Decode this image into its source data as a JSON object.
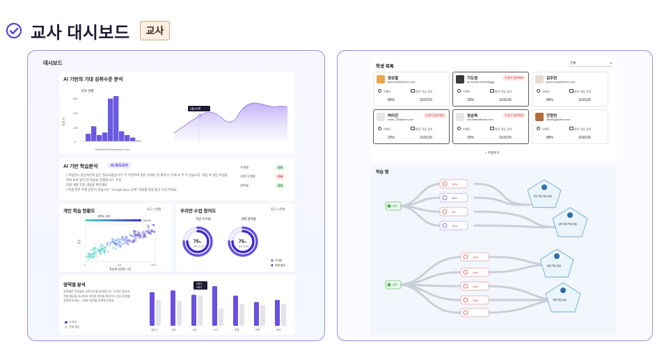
{
  "header": {
    "title": "교사 대시보드",
    "badge": "교사",
    "icon": "check-circle-icon",
    "accent": "#5b3fd6"
  },
  "left": {
    "panel_title": "대시보드",
    "achievement": {
      "title": "AI 기반의 기대 성취수준 분석",
      "hist_title": "분포 현황",
      "hist_xlabel": "Expected Performance Level",
      "hist_ylabel": "학생 수",
      "hist_yticks": [
        "300",
        "200",
        "100",
        "0"
      ],
      "hist_values": [
        0,
        60,
        120,
        50,
        70,
        340,
        360,
        80,
        50,
        30,
        5
      ],
      "tooltip": "2월 00명"
    },
    "learning": {
      "title": "AI 기반 학습분석",
      "badge": "AI 보조교사",
      "line1": "• 프랑현시 정상적인데 음은 정규사람입니다. 주 주변하여 질문 이해다 잘 평대 다 주제 보 주 수 있습니다. 개념 외 일반 학생들에게 보조 앞이 더 학습을 진행합니다. 수업",
      "line2": "  학생 개별 코칭 내용을 확인해요.",
      "line3": "• 학생 연관 주제 감전이 있습니다. \"Google Docs 문제\" 자료를 학습 참고 다녀 주세요.",
      "rows": [
        {
          "label": "숙제율",
          "badge": "양호"
        },
        {
          "label": "과제 수행률",
          "badge": "주의"
        },
        {
          "label": "참여율",
          "badge": "양호"
        }
      ]
    },
    "scatter": {
      "title": "개인 학습 현황도",
      "filter": "최근 1개월",
      "colorbar_label": "성취도 분포",
      "colorbar_max": "100.00",
      "xlabel": "학습에 사용한 시간",
      "ylabel": "점수",
      "xticks": [
        "0",
        "5%",
        "10%"
      ]
    },
    "class": {
      "title": "우리반 수업 참여도",
      "filter": "최근 1개월",
      "donut1_title": "학업 이수율",
      "donut1_value": "75",
      "donut1_unit": "%",
      "donut1_sub": "평균 이수율",
      "donut1_pct": 75,
      "donut2_title": "과제 참여율",
      "donut2_value": "75",
      "donut2_unit": "%",
      "donut2_sub": "평균 참여율",
      "donut2_pct": 75,
      "legend1": "우리반",
      "legend2": "전체 평균"
    },
    "area": {
      "title": "영역별 분석",
      "desc1": "영역별로 학생들의 성취수준을 분석합니다. 우리반 평균과",
      "desc2": "전체 평균을 비교하여 부족한 영역을 확인하고 지도 방향을",
      "desc3": "설정해 보세요. 그래프 항목을 선택해 보세요.",
      "legend1": "우리반",
      "legend2": "전체 평균",
      "tooltip1": "1학기",
      "tooltip2": "2학기",
      "categories": [
        "말하기",
        "듣기",
        "읽기",
        "쓰기",
        "문법",
        "문학",
        "매체"
      ],
      "series": [
        {
          "name": "우리반",
          "values": [
            78,
            82,
            72,
            92,
            70,
            55,
            60
          ]
        },
        {
          "name": "전체 평균",
          "values": [
            60,
            58,
            70,
            40,
            50,
            48,
            50
          ]
        }
      ],
      "colors": {
        "ours": "#6a4fe0",
        "avg": "#e3e3ea"
      }
    }
  },
  "right": {
    "list_title": "학생 목록",
    "select": "전체",
    "add": "+ 학생추가",
    "col1": "이해도",
    "col2": "완료 학습 강의",
    "students": [
      {
        "name": "정성철",
        "email": "gdsxcdfstr@steer.com",
        "tag": "",
        "v1": "80%",
        "v2": "110/120",
        "color": "#e8a64a"
      },
      {
        "name": "기도영",
        "email": "qf.ssentur23090@ggg",
        "tag": "도움이 필요해요",
        "v1": "10%",
        "v2": "110/120",
        "color": "#3a3a3a"
      },
      {
        "name": "김주연",
        "email": "gsvlcr.boyd@steer.com",
        "tag": "",
        "v1": "80%",
        "v2": "110/120",
        "color": "#e7dcd0"
      },
      {
        "name": "허미진",
        "email": "smile_90@steer.com",
        "tag": "도움이 필요해요",
        "v1": "20%",
        "v2": "110/120",
        "color": "#e6e6e6"
      },
      {
        "name": "정승욱",
        "email": "mountain@steer.com",
        "tag": "도움이 필요해요",
        "v1": "20%",
        "v2": "110/120",
        "color": "#e6e6e6"
      },
      {
        "name": "진현연",
        "email": "landing@steer.com",
        "tag": "",
        "v1": "88%",
        "v2": "110/120",
        "color": "#b26b3d"
      }
    ],
    "flow_title": "학습 맵",
    "flow": {
      "start1": "시작",
      "start2": "시작",
      "nodes": [
        "10%",
        "30%",
        "0%",
        "10%",
        "10%",
        "10%",
        "10%",
        "10%"
      ],
      "end1": "기본 개념 학습 완료",
      "end2": "심화 개념 학습 완료",
      "end3": "응용 학습 완료",
      "end4": "최종 학습 완료"
    }
  }
}
